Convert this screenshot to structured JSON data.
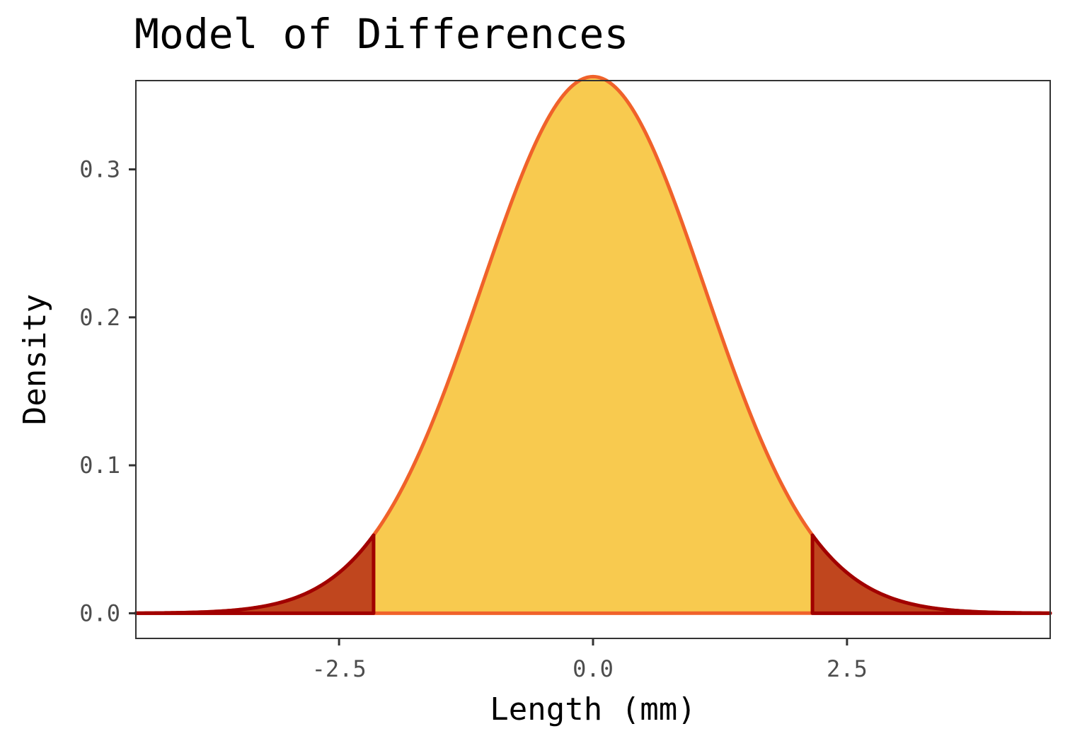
{
  "chart_data": {
    "type": "area",
    "title": "Model of Differences",
    "xlabel": "Length (mm)",
    "ylabel": "Density",
    "xlim": [
      -4.5,
      4.5
    ],
    "ylim": [
      -0.017,
      0.36
    ],
    "x_ticks": [
      -2.5,
      0.0,
      2.5
    ],
    "x_tick_labels": [
      "-2.5",
      "0.0",
      "2.5"
    ],
    "y_ticks": [
      0.0,
      0.1,
      0.2,
      0.3
    ],
    "y_tick_labels": [
      "0.0",
      "0.1",
      "0.2",
      "0.3"
    ],
    "distribution": {
      "kind": "normal",
      "mean": 0,
      "sd": 1.1,
      "x_range": [
        -4.5,
        4.5
      ],
      "peak_density": 0.3627
    },
    "tails": {
      "lower_cutoff": -2.16,
      "upper_cutoff": 2.16,
      "cutoff_density": 0.053
    },
    "grid": false,
    "colors": {
      "body_fill": "#F8CA4F",
      "curve": "#F0622A",
      "tail_fill": "#C0461E",
      "tail_outline": "#A10000",
      "panel_border": "#333333"
    }
  }
}
